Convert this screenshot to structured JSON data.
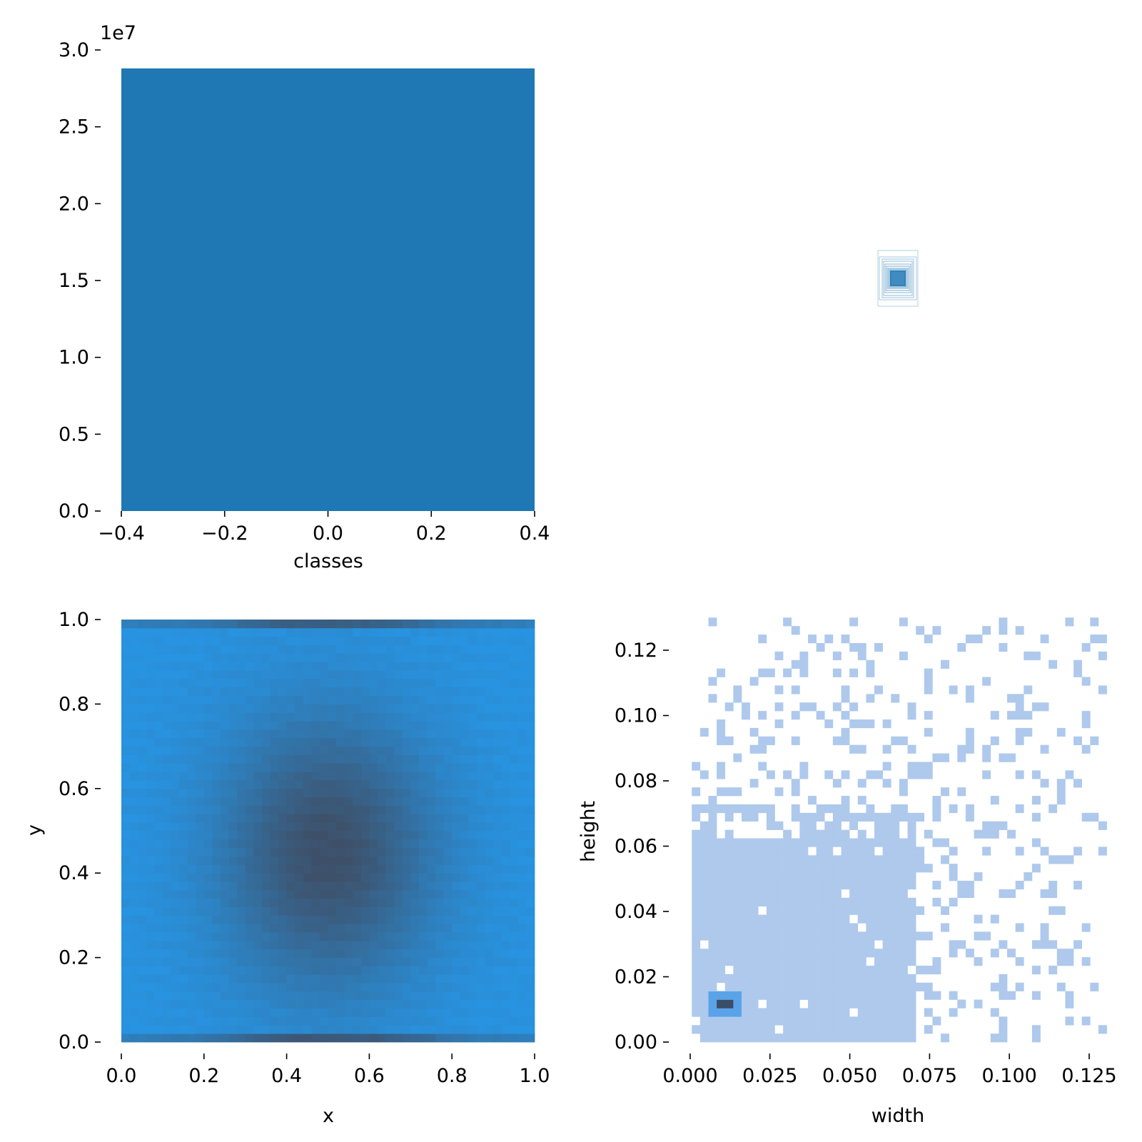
{
  "colors": {
    "bar": "#1f77b4",
    "hist_light": "#aec9ec",
    "hist_mid": "#5aa3e8",
    "hist_dark": "#3b4c66",
    "heat_edge": "#2893e0",
    "heat_center": "#3e5069",
    "tick": "#000000"
  },
  "chart_data": [
    {
      "type": "bar",
      "panel": "classes-histogram",
      "categories": [
        0
      ],
      "values": [
        28800000
      ],
      "xlabel": "classes",
      "ylabel": "",
      "xlim": [
        -0.4,
        0.4
      ],
      "ylim": [
        0,
        30000000
      ],
      "offset_text": "1e7",
      "xticks": [
        "−0.4",
        "−0.2",
        "0.0",
        "0.2",
        "0.4"
      ],
      "yticks": [
        "0.0",
        "0.5",
        "1.0",
        "1.5",
        "2.0",
        "2.5",
        "3.0"
      ],
      "grid": false,
      "legend": "none"
    },
    {
      "type": "other",
      "panel": "box-outlines",
      "description_in_picture": "nested rectangle outlines centered in panel"
    },
    {
      "type": "heatmap",
      "panel": "xy-density",
      "xlabel": "x",
      "ylabel": "y",
      "xlim": [
        0,
        1
      ],
      "ylim": [
        0,
        1
      ],
      "xticks": [
        "0.0",
        "0.2",
        "0.4",
        "0.6",
        "0.8",
        "1.0"
      ],
      "yticks": [
        "0.0",
        "0.2",
        "0.4",
        "0.6",
        "0.8",
        "1.0"
      ],
      "density_peak": [
        0.5,
        0.45
      ],
      "bins": 50,
      "grid": false
    },
    {
      "type": "heatmap",
      "panel": "width-height-histogram",
      "xlabel": "width",
      "ylabel": "height",
      "xlim": [
        -0.001,
        0.131
      ],
      "ylim": [
        -0.002,
        0.13
      ],
      "xticks": [
        "0.000",
        "0.025",
        "0.050",
        "0.075",
        "0.100",
        "0.125"
      ],
      "yticks": [
        "0.00",
        "0.02",
        "0.04",
        "0.06",
        "0.08",
        "0.10",
        "0.12"
      ],
      "bin_size": [
        0.0026,
        0.0026
      ],
      "dense_region": {
        "width": [
          0.0005,
          0.0705
        ],
        "height": [
          0.0,
          0.0705
        ]
      },
      "peak": {
        "width": 0.0095,
        "height": 0.0095
      },
      "grid": false
    }
  ]
}
